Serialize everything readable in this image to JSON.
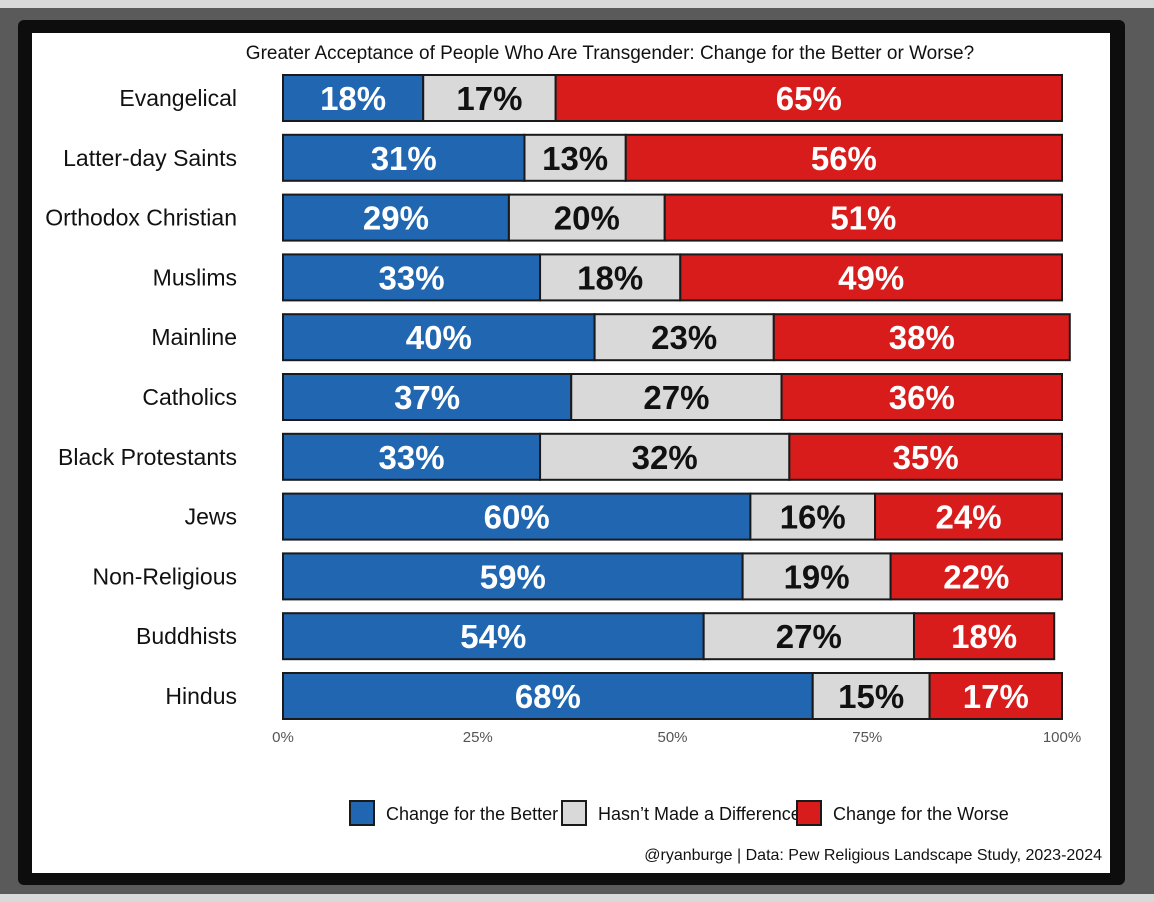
{
  "colors": {
    "better": "#2166b0",
    "neutral": "#d9d9d9",
    "worse": "#d81b1b",
    "outline": "#1a1a1a"
  },
  "chart_data": {
    "type": "bar",
    "orientation": "horizontal",
    "stacked": true,
    "title": "Greater Acceptance of People Who Are Transgender: Change for the Better or Worse?",
    "categories": [
      "Evangelical",
      "Latter-day Saints",
      "Orthodox Christian",
      "Muslims",
      "Mainline",
      "Catholics",
      "Black Protestants",
      "Jews",
      "Non-Religious",
      "Buddhists",
      "Hindus"
    ],
    "series": [
      {
        "name": "Change for the Better",
        "key": "better",
        "values": [
          18,
          31,
          29,
          33,
          40,
          37,
          33,
          60,
          59,
          54,
          68
        ]
      },
      {
        "name": "Hasn't Made a Difference",
        "key": "neutral",
        "values": [
          17,
          13,
          20,
          18,
          23,
          27,
          32,
          16,
          19,
          27,
          15
        ]
      },
      {
        "name": "Change for the Worse",
        "key": "worse",
        "values": [
          65,
          56,
          51,
          49,
          38,
          36,
          35,
          24,
          22,
          18,
          17
        ]
      }
    ],
    "xlim": [
      0,
      100
    ],
    "xticks": [
      "0%",
      "25%",
      "50%",
      "75%",
      "100%"
    ],
    "legend_position": "bottom",
    "grid": false
  },
  "legend": {
    "items": [
      "Change for the Better",
      "Hasn’t Made a Difference",
      "Change for the Worse"
    ]
  },
  "credit": "@ryanburge | Data: Pew Religious Landscape Study, 2023-2024"
}
